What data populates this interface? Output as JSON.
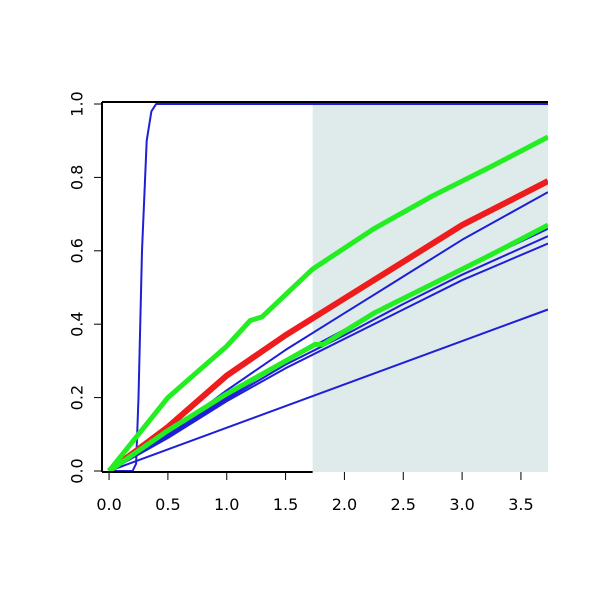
{
  "chart_data": {
    "type": "line",
    "xlim": [
      -0.06,
      3.73
    ],
    "ylim": [
      0,
      1
    ],
    "xticks": [
      {
        "value": 0,
        "label": "0.0"
      },
      0.5,
      {
        "value": 1,
        "label": "1.0"
      },
      1.5,
      {
        "value": 2,
        "label": "2.0"
      },
      2.5,
      {
        "value": 3,
        "label": "3.0"
      },
      3.5
    ],
    "yticks": [
      {
        "value": 0,
        "label": "0.0"
      },
      0.2,
      0.4,
      0.6,
      0.8,
      {
        "value": 1,
        "label": "1.0"
      }
    ],
    "shaded_region": [
      1.73,
      3.73
    ],
    "shade_color": "#dfebea",
    "series": [
      {
        "color": "#1f1fd6",
        "line_width": 2,
        "x": [
          0,
          0.2,
          0.23,
          0.25,
          0.28,
          0.32,
          0.36,
          0.4,
          0.5,
          3.73
        ],
        "values": [
          0,
          0,
          0.02,
          0.2,
          0.6,
          0.9,
          0.98,
          1,
          1,
          1
        ]
      },
      {
        "color": "#1f1fd6",
        "line_width": 2,
        "x": [
          0,
          3.73
        ],
        "values": [
          0,
          0.44
        ]
      },
      {
        "color": "#1f1fd6",
        "line_width": 2,
        "x": [
          0,
          0.5,
          1,
          1.5,
          2,
          2.5,
          3,
          3.73
        ],
        "values": [
          0,
          0.09,
          0.19,
          0.28,
          0.36,
          0.44,
          0.52,
          0.62
        ]
      },
      {
        "color": "#1f1fd6",
        "line_width": 2,
        "x": [
          0,
          0.5,
          1,
          1.5,
          2,
          2.5,
          3,
          3.73
        ],
        "values": [
          0,
          0.095,
          0.195,
          0.29,
          0.37,
          0.455,
          0.535,
          0.64
        ]
      },
      {
        "color": "#1f1fd6",
        "line_width": 2,
        "x": [
          0,
          0.5,
          1,
          1.5,
          2,
          2.5,
          3,
          3.73
        ],
        "values": [
          0,
          0.1,
          0.2,
          0.3,
          0.385,
          0.47,
          0.55,
          0.66
        ]
      },
      {
        "color": "#1f1fd6",
        "line_width": 2,
        "x": [
          0,
          0.5,
          1,
          1.5,
          2,
          2.5,
          3,
          3.73
        ],
        "values": [
          0,
          0.1,
          0.22,
          0.33,
          0.43,
          0.53,
          0.63,
          0.76
        ]
      },
      {
        "color": "#ee1c1c",
        "line_width": 6,
        "x": [
          0,
          0.5,
          1,
          1.5,
          2,
          2.5,
          3,
          3.73
        ],
        "values": [
          0,
          0.12,
          0.26,
          0.37,
          0.47,
          0.57,
          0.67,
          0.79
        ]
      },
      {
        "color": "#22ee22",
        "line_width": 5,
        "x": [
          0,
          0.5,
          1,
          1.5,
          1.75,
          1.82,
          2.25,
          2.75,
          3.25,
          3.73
        ],
        "values": [
          0,
          0.11,
          0.21,
          0.3,
          0.345,
          0.345,
          0.43,
          0.51,
          0.59,
          0.67
        ]
      },
      {
        "color": "#22ee22",
        "line_width": 5,
        "x": [
          0,
          0.5,
          1,
          1.2,
          1.3,
          1.73,
          2.25,
          2.75,
          3.25,
          3.73
        ],
        "values": [
          0,
          0.2,
          0.34,
          0.41,
          0.42,
          0.55,
          0.66,
          0.75,
          0.83,
          0.91
        ]
      }
    ]
  }
}
